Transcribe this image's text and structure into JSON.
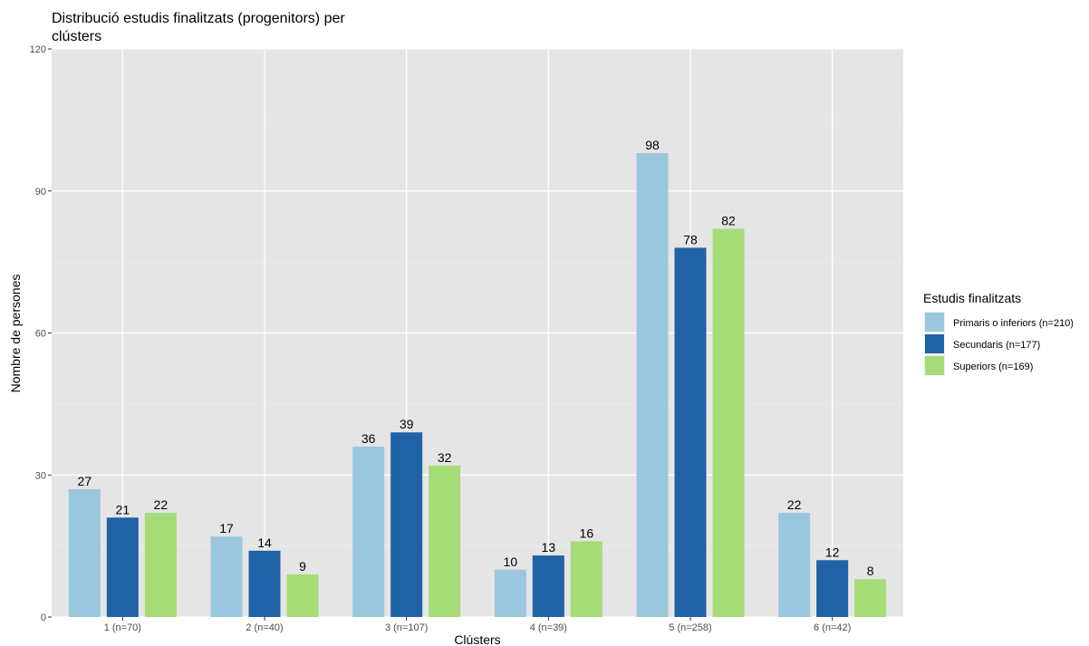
{
  "chart_data": {
    "type": "bar",
    "title_line1": "Distribució estudis finalitzats (progenitors) per",
    "title_line2": "clústers",
    "xlabel": "Clústers",
    "ylabel": "Nombre de persones",
    "ylim": [
      0,
      120
    ],
    "yticks": [
      0,
      30,
      60,
      90,
      120
    ],
    "categories": [
      "1 (n=70)",
      "2 (n=40)",
      "3 (n=107)",
      "4 (n=39)",
      "5 (n=258)",
      "6 (n=42)"
    ],
    "series": [
      {
        "name": "Primaris o inferiors (n=210)",
        "color": "#9ac6de",
        "values": [
          27,
          17,
          36,
          10,
          98,
          22
        ]
      },
      {
        "name": "Secundaris (n=177)",
        "color": "#1f62a5",
        "values": [
          21,
          14,
          39,
          13,
          78,
          12
        ]
      },
      {
        "name": "Superiors (n=169)",
        "color": "#a6dc77",
        "values": [
          22,
          9,
          32,
          16,
          82,
          8
        ]
      }
    ],
    "legend_title": "Estudis finalitzats",
    "legend_position": "right",
    "grid": true,
    "panel_background": "#e5e5e5"
  }
}
